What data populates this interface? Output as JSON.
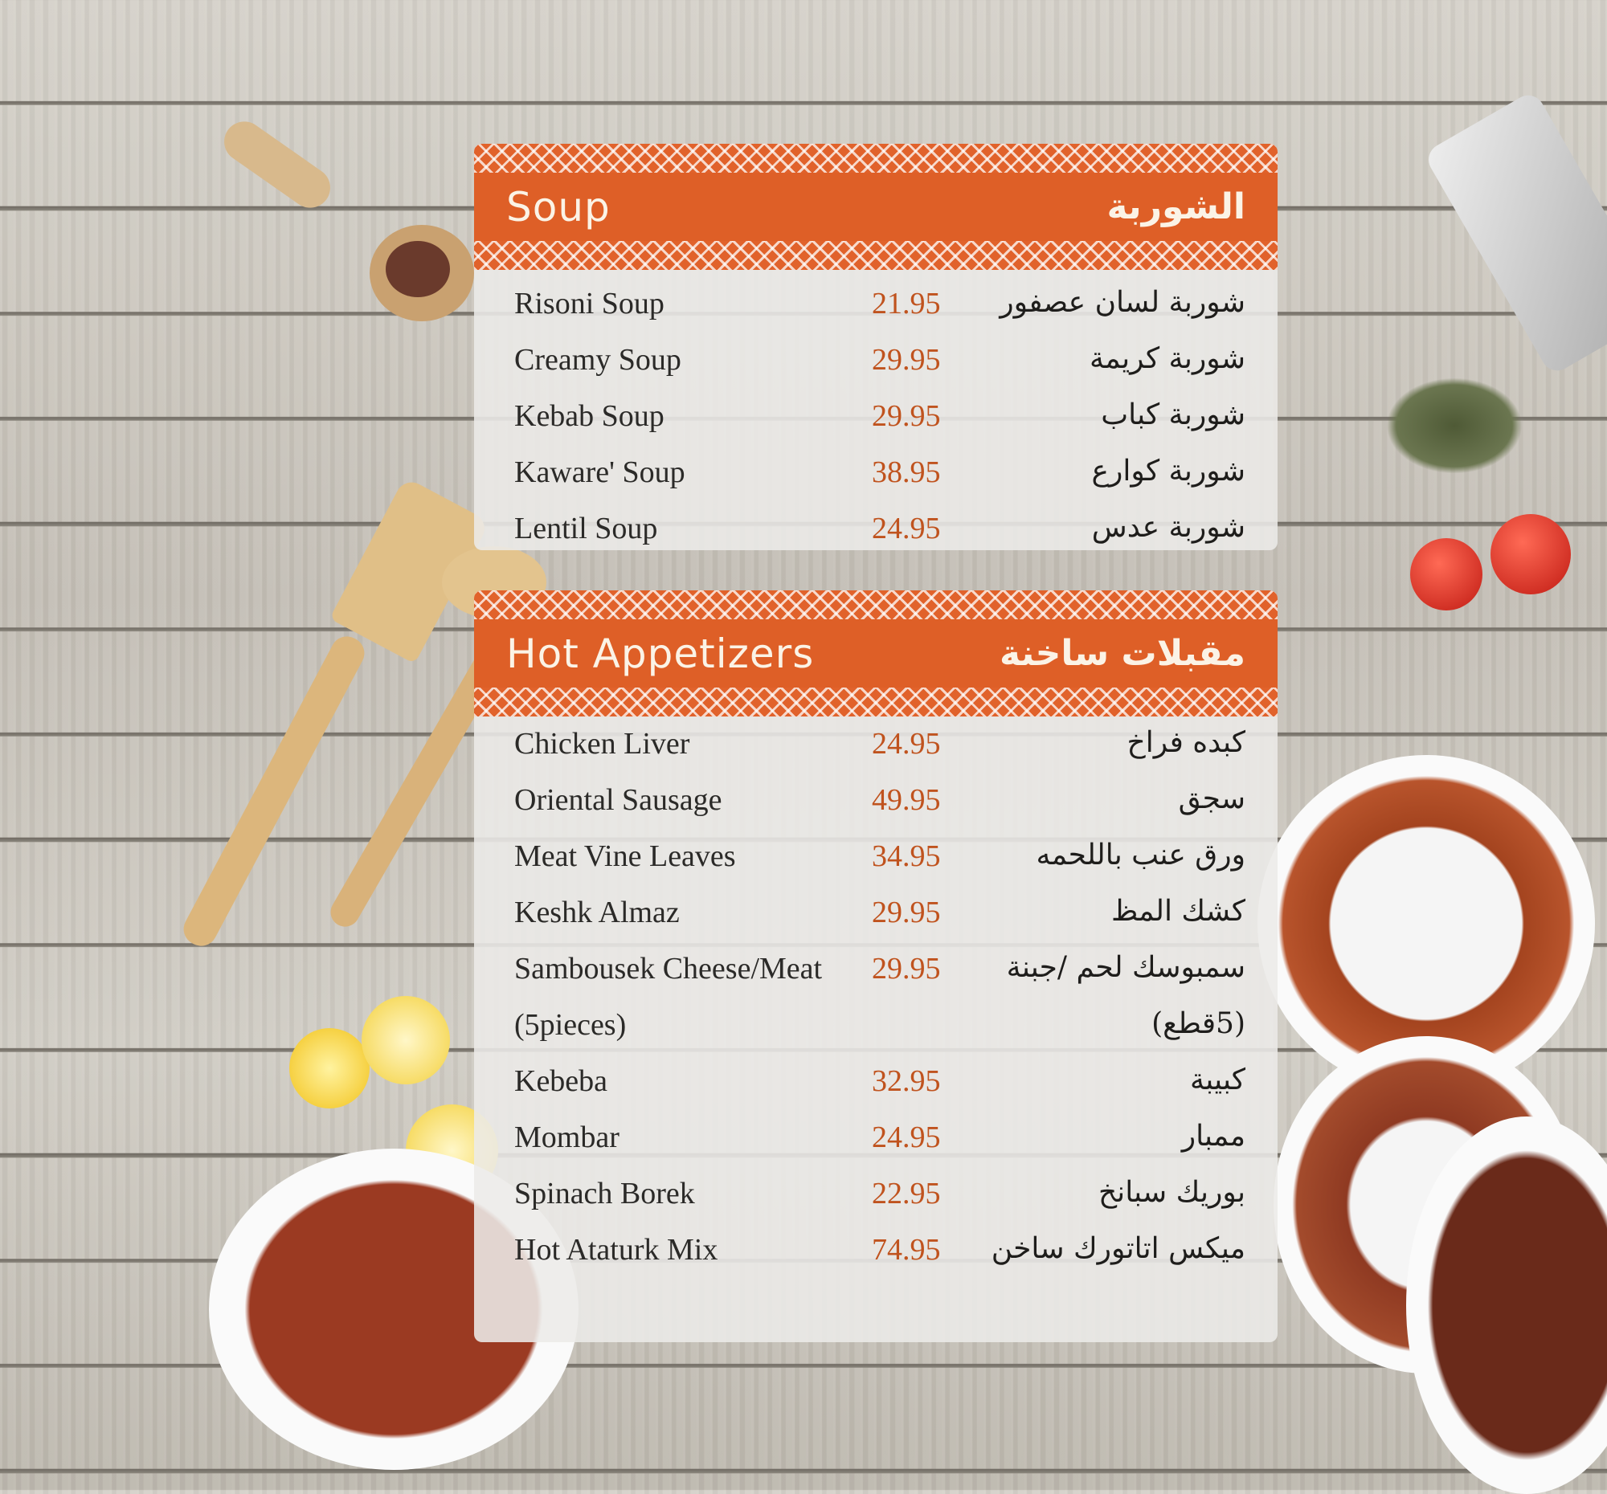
{
  "sections": [
    {
      "title_en": "Soup",
      "title_ar": "الشوربة",
      "items": [
        {
          "name": "Risoni Soup",
          "price": "21.95",
          "name_ar": "شوربة لسان عصفور"
        },
        {
          "name": "Creamy Soup",
          "price": "29.95",
          "name_ar": "شوربة كريمة"
        },
        {
          "name": "Kebab Soup",
          "price": "29.95",
          "name_ar": "شوربة كباب"
        },
        {
          "name": "Kaware' Soup",
          "price": "38.95",
          "name_ar": "شوربة كوارع"
        },
        {
          "name": "Lentil Soup",
          "price": "24.95",
          "name_ar": "شوربة عدس"
        }
      ]
    },
    {
      "title_en": "Hot Appetizers",
      "title_ar": "مقبلات ساخنة",
      "items": [
        {
          "name": "Chicken Liver",
          "price": "24.95",
          "name_ar": "كبده فراخ"
        },
        {
          "name": "Oriental Sausage",
          "price": "49.95",
          "name_ar": "سجق"
        },
        {
          "name": "Meat Vine Leaves",
          "price": "34.95",
          "name_ar": "ورق عنب باللحمه"
        },
        {
          "name": "Keshk Almaz",
          "price": "29.95",
          "name_ar": "كشك المظ"
        },
        {
          "name": "Sambousek Cheese/Meat",
          "price": "29.95",
          "name_ar": "سمبوسك لحم /جبنة"
        },
        {
          "name": "(5pieces)",
          "price": "",
          "name_ar": "(5قطع)"
        },
        {
          "name": "Kebeba",
          "price": "32.95",
          "name_ar": "كبيبة"
        },
        {
          "name": "Mombar",
          "price": "24.95",
          "name_ar": "ممبار"
        },
        {
          "name": "Spinach Borek",
          "price": "22.95",
          "name_ar": "بوريك سبانخ"
        },
        {
          "name": "Hot Ataturk Mix",
          "price": "74.95",
          "name_ar": "ميكس اتاتورك ساخن"
        }
      ]
    }
  ],
  "colors": {
    "accent": "#de5f27",
    "price": "#c0531e",
    "panel": "#ecebe8"
  }
}
